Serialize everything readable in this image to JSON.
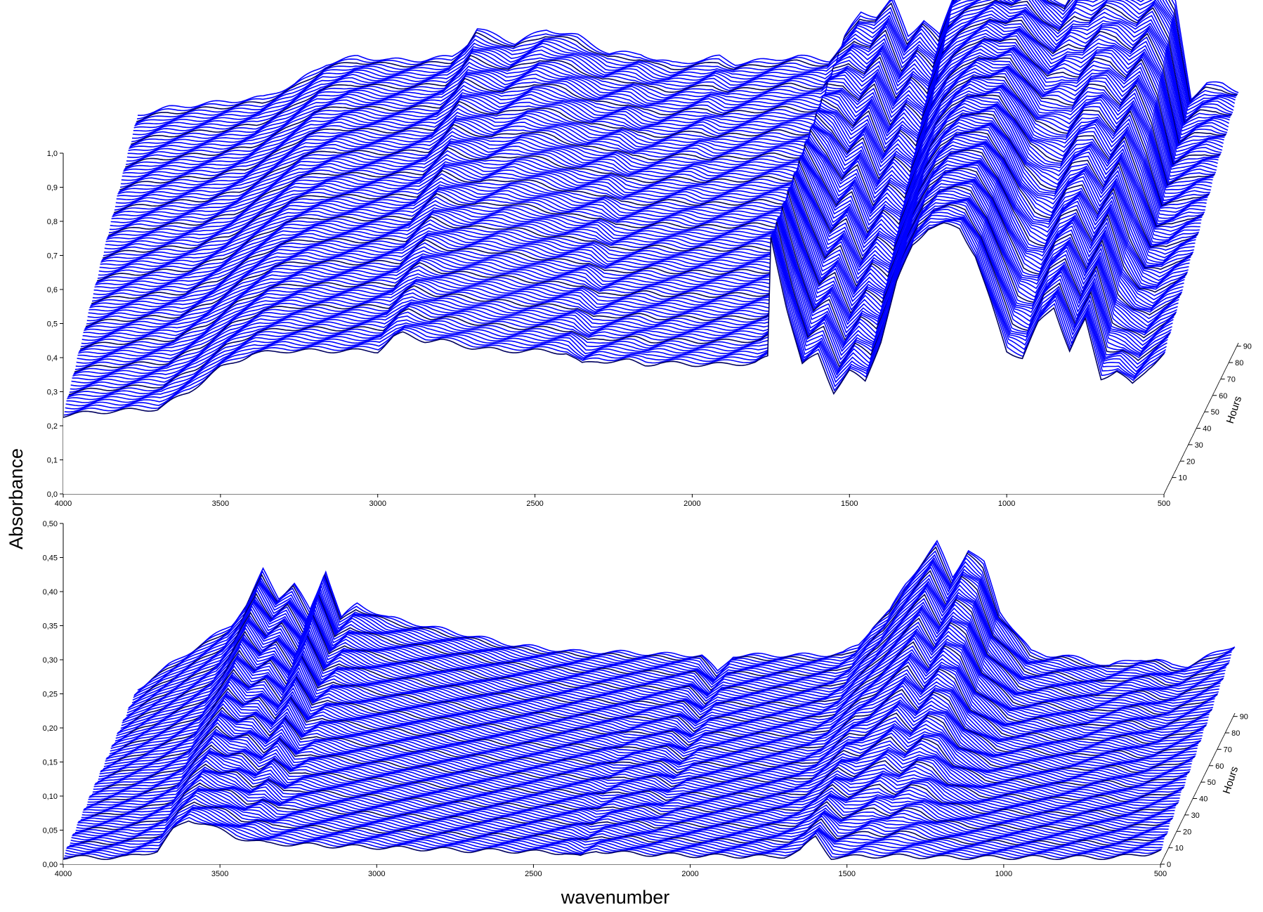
{
  "chart_data": [
    {
      "type": "area",
      "view": "3d-waterfall",
      "panel": "top",
      "series_color": "#0000ff",
      "x": {
        "label": "wavenumber",
        "range": [
          4000,
          500
        ],
        "ticks": [
          "4000",
          "3500",
          "3000",
          "2500",
          "2000",
          "1500",
          "1000",
          "500"
        ]
      },
      "y": {
        "label": "Absorbance",
        "range": [
          0,
          1.0
        ],
        "ticks": [
          "0,0",
          "0,1",
          "0,2",
          "0,3",
          "0,4",
          "0,5",
          "0,6",
          "0,7",
          "0,8",
          "0,9",
          "1,0"
        ]
      },
      "z": {
        "label": "Hours",
        "range": [
          0,
          92
        ],
        "ticks": [
          "10",
          "20",
          "30",
          "40",
          "50",
          "60",
          "70",
          "80",
          "90"
        ]
      },
      "profile": {
        "wavenumbers": [
          4000,
          3900,
          3800,
          3700,
          3600,
          3500,
          3400,
          3300,
          3200,
          3100,
          3000,
          2950,
          2920,
          2850,
          2800,
          2700,
          2600,
          2500,
          2400,
          2350,
          2300,
          2200,
          2150,
          2100,
          2000,
          1900,
          1800,
          1760,
          1750,
          1700,
          1650,
          1600,
          1550,
          1500,
          1450,
          1400,
          1350,
          1300,
          1250,
          1200,
          1150,
          1100,
          1050,
          1000,
          950,
          900,
          850,
          800,
          750,
          700,
          650,
          600,
          550,
          500
        ],
        "absorbance_front": [
          0.23,
          0.24,
          0.245,
          0.25,
          0.3,
          0.37,
          0.41,
          0.42,
          0.42,
          0.42,
          0.42,
          0.46,
          0.47,
          0.45,
          0.45,
          0.43,
          0.42,
          0.42,
          0.415,
          0.38,
          0.39,
          0.39,
          0.38,
          0.385,
          0.38,
          0.38,
          0.385,
          0.4,
          0.75,
          0.55,
          0.38,
          0.41,
          0.3,
          0.36,
          0.33,
          0.45,
          0.62,
          0.73,
          0.78,
          0.79,
          0.78,
          0.7,
          0.56,
          0.42,
          0.4,
          0.5,
          0.55,
          0.42,
          0.51,
          0.34,
          0.36,
          0.32,
          0.37,
          0.41
        ],
        "absorbance_back": [
          0.67,
          0.69,
          0.7,
          0.71,
          0.72,
          0.76,
          0.82,
          0.84,
          0.83,
          0.83,
          0.84,
          0.88,
          0.92,
          0.9,
          0.88,
          0.92,
          0.9,
          0.85,
          0.85,
          0.83,
          0.82,
          0.83,
          0.84,
          0.82,
          0.83,
          0.84,
          0.83,
          0.87,
          0.9,
          0.97,
          0.96,
          1.01,
          0.9,
          0.95,
          0.9,
          1.03,
          1.05,
          1.06,
          1.08,
          1.05,
          1.07,
          1.02,
          0.99,
          1.06,
          1.05,
          1.08,
          1.06,
          1.04,
          1.07,
          1.0,
          0.72,
          0.76,
          0.76,
          0.74
        ]
      }
    },
    {
      "type": "area",
      "view": "3d-waterfall",
      "panel": "bottom",
      "series_color": "#0000ff",
      "x": {
        "label": "wavenumber",
        "range": [
          4000,
          500
        ],
        "ticks": [
          "4000",
          "3500",
          "3000",
          "2500",
          "2000",
          "1500",
          "1000",
          "500"
        ]
      },
      "y": {
        "label": "Absorbance",
        "range": [
          0,
          0.5
        ],
        "ticks": [
          "0,00",
          "0,05",
          "0,10",
          "0,15",
          "0,20",
          "0,25",
          "0,30",
          "0,35",
          "0,40",
          "0,45",
          "0,50"
        ]
      },
      "z": {
        "label": "Hours",
        "range": [
          0,
          92
        ],
        "ticks": [
          "0",
          "10",
          "20",
          "30",
          "40",
          "50",
          "60",
          "70",
          "80",
          "90"
        ]
      },
      "profile": {
        "wavenumbers": [
          4000,
          3900,
          3800,
          3700,
          3650,
          3600,
          3550,
          3500,
          3450,
          3400,
          3350,
          3300,
          3200,
          3100,
          3000,
          2900,
          2800,
          2700,
          2600,
          2500,
          2400,
          2350,
          2300,
          2200,
          2150,
          2100,
          2000,
          1900,
          1800,
          1750,
          1700,
          1650,
          1600,
          1550,
          1500,
          1450,
          1400,
          1350,
          1300,
          1250,
          1200,
          1150,
          1100,
          1050,
          1000,
          950,
          900,
          850,
          800,
          750,
          700,
          650,
          600,
          550,
          500
        ],
        "absorbance_front": [
          0.01,
          0.01,
          0.01,
          0.02,
          0.05,
          0.065,
          0.06,
          0.05,
          0.04,
          0.035,
          0.03,
          0.03,
          0.028,
          0.026,
          0.025,
          0.023,
          0.022,
          0.02,
          0.02,
          0.018,
          0.017,
          0.01,
          0.02,
          0.016,
          0.015,
          0.014,
          0.013,
          0.012,
          0.012,
          0.01,
          0.012,
          0.02,
          0.04,
          0.01,
          0.01,
          0.012,
          0.012,
          0.012,
          0.012,
          0.011,
          0.01,
          0.01,
          0.01,
          0.01,
          0.01,
          0.01,
          0.01,
          0.01,
          0.01,
          0.01,
          0.01,
          0.01,
          0.012,
          0.015,
          0.02
        ],
        "absorbance_back": [
          0.035,
          0.07,
          0.1,
          0.13,
          0.16,
          0.21,
          0.17,
          0.19,
          0.15,
          0.21,
          0.14,
          0.16,
          0.14,
          0.13,
          0.12,
          0.11,
          0.1,
          0.095,
          0.09,
          0.09,
          0.088,
          0.087,
          0.086,
          0.085,
          0.06,
          0.085,
          0.085,
          0.085,
          0.086,
          0.088,
          0.1,
          0.13,
          0.15,
          0.19,
          0.22,
          0.25,
          0.2,
          0.24,
          0.22,
          0.15,
          0.12,
          0.09,
          0.085,
          0.085,
          0.08,
          0.075,
          0.07,
          0.075,
          0.08,
          0.078,
          0.07,
          0.07,
          0.08,
          0.09,
          0.1
        ]
      }
    }
  ],
  "labels": {
    "y_title": "Absorbance",
    "x_title": "wavenumber",
    "z_title": "Hours"
  }
}
